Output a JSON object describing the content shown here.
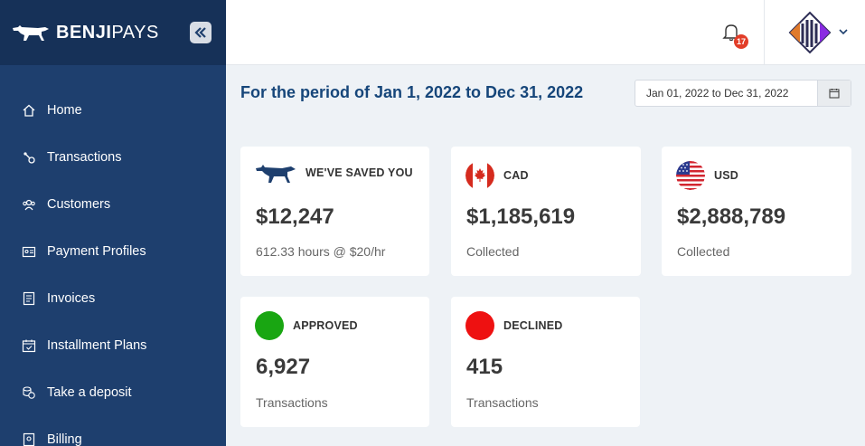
{
  "brand": {
    "name_bold": "BENJI",
    "name_light": "PAYS"
  },
  "sidebar": {
    "items": [
      {
        "label": "Home",
        "icon": "home-icon"
      },
      {
        "label": "Transactions",
        "icon": "transactions-icon"
      },
      {
        "label": "Customers",
        "icon": "customers-icon"
      },
      {
        "label": "Payment Profiles",
        "icon": "payment-profiles-icon"
      },
      {
        "label": "Invoices",
        "icon": "invoices-icon"
      },
      {
        "label": "Installment Plans",
        "icon": "calendar-icon"
      },
      {
        "label": "Take a deposit",
        "icon": "coins-icon"
      },
      {
        "label": "Billing",
        "icon": "billing-icon"
      }
    ]
  },
  "header": {
    "notification_count": "17"
  },
  "main": {
    "period_title": "For the period of Jan 1, 2022 to Dec 31, 2022",
    "date_range": "Jan 01, 2022 to Dec 31, 2022"
  },
  "cards": {
    "saved": {
      "label": "WE'VE SAVED YOU",
      "value": "$12,247",
      "sub": "612.33 hours @ $20/hr"
    },
    "cad": {
      "label": "CAD",
      "value": "$1,185,619",
      "sub": "Collected"
    },
    "usd": {
      "label": "USD",
      "value": "$2,888,789",
      "sub": "Collected"
    },
    "approved": {
      "label": "APPROVED",
      "value": "6,927",
      "sub": "Transactions"
    },
    "declined": {
      "label": "DECLINED",
      "value": "415",
      "sub": "Transactions"
    }
  },
  "colors": {
    "sidebar": "#1e3f6e",
    "accent_title": "#16467a",
    "approved": "#19a612",
    "declined": "#ee1111",
    "badge": "#e23d28"
  }
}
